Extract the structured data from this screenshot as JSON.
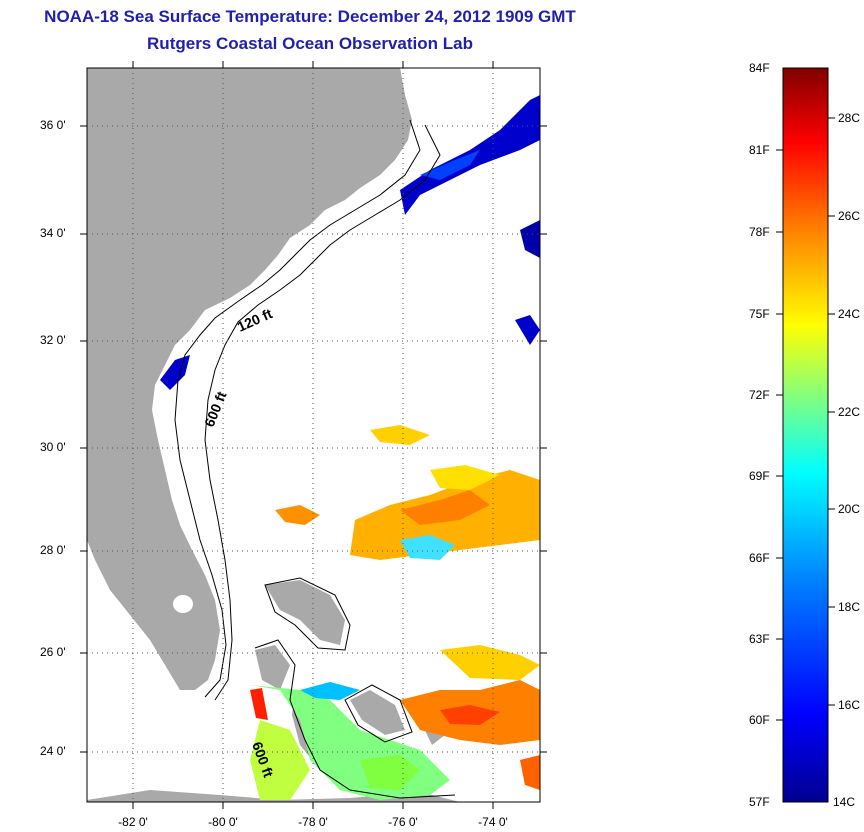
{
  "title": "NOAA-18 Sea Surface Temperature:  December 24, 2012 1909 GMT",
  "subtitle": "Rutgers Coastal Ocean Observation Lab",
  "y_axis_labels": [
    "36 0'",
    "34 0'",
    "32 0'",
    "30 0'",
    "28 0'",
    "26 0'",
    "24 0'"
  ],
  "x_axis_labels": [
    "-82 0'",
    "-80 0'",
    "-78 0'",
    "-76 0'",
    "-74 0'"
  ],
  "contour_labels": [
    "120 ft",
    "600 ft",
    "600 ft"
  ],
  "colorbar": {
    "fahrenheit_labels": [
      "84F",
      "81F",
      "78F",
      "75F",
      "72F",
      "69F",
      "66F",
      "63F",
      "60F",
      "57F"
    ],
    "celsius_labels": [
      "28C",
      "26C",
      "24C",
      "22C",
      "20C",
      "18C",
      "16C",
      "14C"
    ],
    "colors": [
      "#00008f",
      "#0000ff",
      "#0080ff",
      "#00ffff",
      "#80ff80",
      "#ffff00",
      "#ff8000",
      "#ff0000",
      "#800000"
    ]
  },
  "colors": {
    "land": "#a9a9a9",
    "ocean_no_data": "#ffffff",
    "title": "#1f1fb0"
  }
}
